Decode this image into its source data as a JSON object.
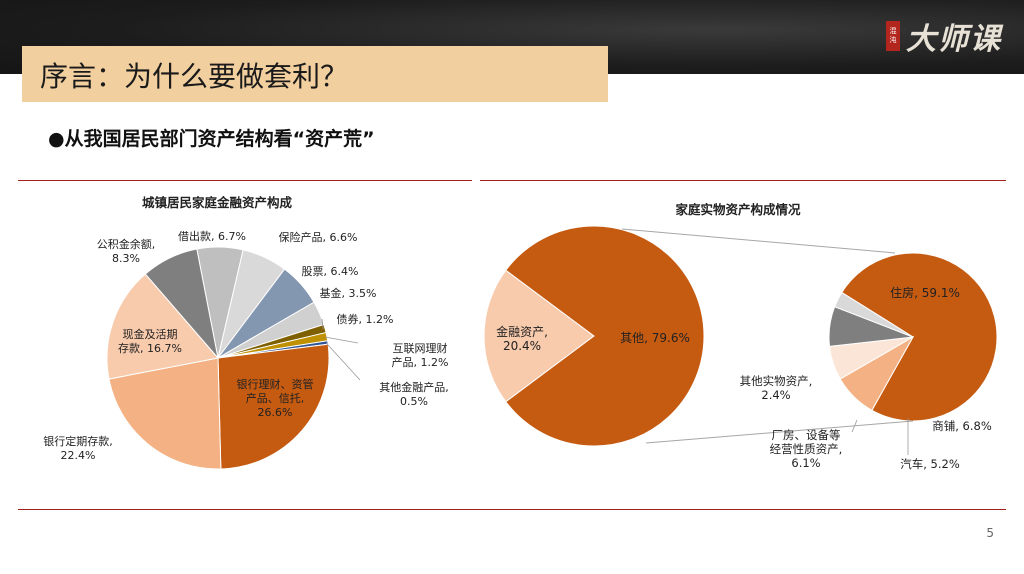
{
  "header": {
    "title": "序言：为什么要做套利？",
    "logo_text": "大师课",
    "logo_seal": "混沌"
  },
  "bullet": "●从我国居民部门资产结构看“资产荒”",
  "page_number": "5",
  "colors": {
    "title_band": "#f2cf9f",
    "rule": "#a01f1f",
    "orange": "#c55a11",
    "peach": "#f4b183",
    "light_peach": "#f8cbad"
  },
  "chart_data": [
    {
      "type": "pie",
      "title": "城镇居民家庭金融资产构成",
      "slices": [
        {
          "name": "借出款",
          "value": 6.7,
          "label_lines": [
            "借出款, 6.7%"
          ],
          "color": "#bfbfbf"
        },
        {
          "name": "保险产品",
          "value": 6.6,
          "label_lines": [
            "保险产品, 6.6%"
          ],
          "color": "#d9d9d9"
        },
        {
          "name": "股票",
          "value": 6.4,
          "label_lines": [
            "股票, 6.4%"
          ],
          "color": "#8497b0"
        },
        {
          "name": "基金",
          "value": 3.5,
          "label_lines": [
            "基金, 3.5%"
          ],
          "color": "#d0d0d0"
        },
        {
          "name": "债券",
          "value": 1.2,
          "label_lines": [
            "债券, 1.2%"
          ],
          "color": "#7f6000"
        },
        {
          "name": "互联网理财产品",
          "value": 1.2,
          "label_lines": [
            "互联网理财",
            "产品, 1.2%"
          ],
          "color": "#bf9000"
        },
        {
          "name": "其他金融产品",
          "value": 0.5,
          "label_lines": [
            "其他金融产品,",
            "0.5%"
          ],
          "color": "#2f5597"
        },
        {
          "name": "银行理财、资管产品、信托",
          "value": 26.6,
          "label_lines": [
            "银行理财、资管",
            "产品、信托,",
            "26.6%"
          ],
          "color": "#c55a11"
        },
        {
          "name": "银行定期存款",
          "value": 22.4,
          "label_lines": [
            "银行定期存款,",
            "22.4%"
          ],
          "color": "#f4b183"
        },
        {
          "name": "现金及活期存款",
          "value": 16.7,
          "label_lines": [
            "现金及活期",
            "存款, 16.7%"
          ],
          "color": "#f8cbad"
        },
        {
          "name": "公积金余额",
          "value": 8.3,
          "label_lines": [
            "公积金余额,",
            "8.3%"
          ],
          "color": "#7f7f7f"
        }
      ]
    },
    {
      "type": "pie-of-pie",
      "title": "家庭实物资产构成情况",
      "main": [
        {
          "name": "其他",
          "value": 79.6,
          "label_lines": [
            "其他, 79.6%"
          ],
          "color": "#c55a11"
        },
        {
          "name": "金融资产",
          "value": 20.4,
          "label_lines": [
            "金融资产,",
            "20.4%"
          ],
          "color": "#f8cbad"
        }
      ],
      "secondary": [
        {
          "name": "住房",
          "value": 59.1,
          "label_lines": [
            "住房, 59.1%"
          ],
          "color": "#c55a11"
        },
        {
          "name": "商铺",
          "value": 6.8,
          "label_lines": [
            "商铺, 6.8%"
          ],
          "color": "#f4b183"
        },
        {
          "name": "汽车",
          "value": 5.2,
          "label_lines": [
            "汽车, 5.2%"
          ],
          "color": "#fbe5d6"
        },
        {
          "name": "厂房、设备等经营性质资产",
          "value": 6.1,
          "label_lines": [
            "厂房、设备等",
            "经营性质资产,",
            "6.1%"
          ],
          "color": "#7f7f7f"
        },
        {
          "name": "其他实物资产",
          "value": 2.4,
          "label_lines": [
            "其他实物资产,",
            "2.4%"
          ],
          "color": "#d9d9d9"
        }
      ]
    }
  ]
}
